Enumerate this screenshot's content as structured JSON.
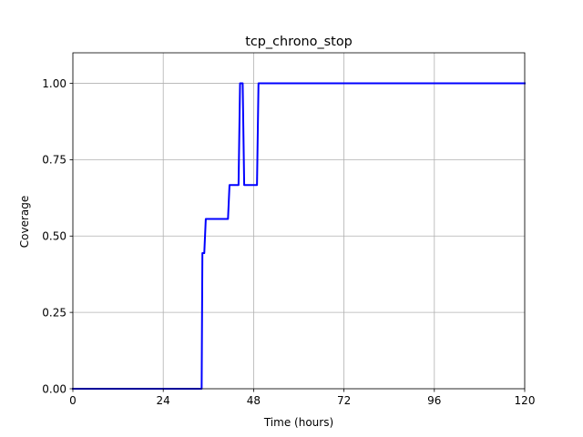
{
  "chart_data": {
    "type": "line",
    "title": "tcp_chrono_stop",
    "xlabel": "Time (hours)",
    "ylabel": "Coverage",
    "xlim": [
      0,
      120
    ],
    "ylim": [
      0,
      1.1
    ],
    "xticks": [
      0,
      24,
      48,
      72,
      96,
      120
    ],
    "xtick_labels": [
      "0",
      "24",
      "48",
      "72",
      "96",
      "120"
    ],
    "yticks": [
      0,
      0.25,
      0.5,
      0.75,
      1.0
    ],
    "ytick_labels": [
      "0.00",
      "0.25",
      "0.50",
      "0.75",
      "1.00"
    ],
    "grid": true,
    "series": [
      {
        "color": "#0000ff",
        "x": [
          0,
          34.2,
          34.4,
          34.8,
          34.9,
          35.3,
          41.2,
          41.6,
          44.0,
          44.4,
          45.1,
          45.5,
          48.9,
          49.3,
          120
        ],
        "y": [
          0,
          0,
          0.444,
          0.444,
          0.444,
          0.556,
          0.556,
          0.667,
          0.667,
          1.0,
          1.0,
          0.667,
          0.667,
          1.0,
          1.0
        ]
      }
    ]
  }
}
